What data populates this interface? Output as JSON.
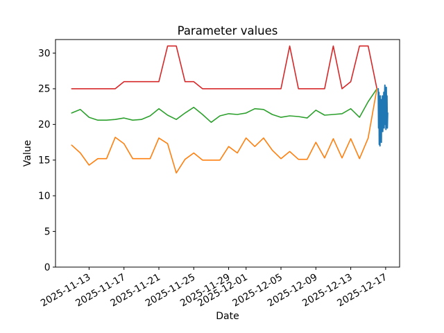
{
  "chart_data": {
    "type": "line",
    "title": "Parameter values",
    "xlabel": "Date",
    "ylabel": "Value",
    "grid": false,
    "legend": "none",
    "x_axis": {
      "epoch": "2025-11-11",
      "tick_labels": [
        "2025-11-13",
        "2025-11-17",
        "2025-11-21",
        "2025-11-25",
        "2025-11-29",
        "2025-12-01",
        "2025-12-05",
        "2025-12-09",
        "2025-12-13",
        "2025-12-17"
      ],
      "tick_day_offsets": [
        2,
        6,
        10,
        14,
        18,
        20,
        24,
        28,
        32,
        36
      ],
      "range_day_offsets": [
        -1.85,
        37.6
      ],
      "tick_label_rotation_deg": 30
    },
    "y_axis": {
      "tick_labels": [
        "0",
        "5",
        "10",
        "15",
        "20",
        "25",
        "30"
      ],
      "tick_values": [
        0,
        5,
        10,
        15,
        20,
        25,
        30
      ],
      "range": [
        0,
        31.9
      ]
    },
    "series": {
      "red": {
        "color": "#d62728",
        "start_date": "2025-11-11",
        "step_days": 1,
        "line_width": 1.6,
        "values": [
          25,
          25,
          25,
          25,
          25,
          25,
          26,
          26,
          26,
          26,
          26,
          31,
          31,
          26,
          26,
          25,
          25,
          25,
          25,
          25,
          25,
          25,
          25,
          25,
          25,
          31,
          25,
          25,
          25,
          25,
          31,
          25,
          26,
          31,
          31,
          25
        ]
      },
      "green": {
        "color": "#2ca02c",
        "start_date": "2025-11-11",
        "step_days": 1,
        "line_width": 1.6,
        "values": [
          21.6,
          22.1,
          21.0,
          20.6,
          20.6,
          20.7,
          20.9,
          20.6,
          20.7,
          21.2,
          22.2,
          21.3,
          20.7,
          21.6,
          22.4,
          21.4,
          20.3,
          21.2,
          21.5,
          21.4,
          21.6,
          22.2,
          22.1,
          21.4,
          21.0,
          21.2,
          21.1,
          20.9,
          22.0,
          21.3,
          21.4,
          21.5,
          22.2,
          21.0,
          23.2,
          25.0
        ]
      },
      "orange": {
        "color": "#ff7f0e",
        "start_date": "2025-11-11",
        "step_days": 1,
        "line_width": 1.6,
        "values": [
          17.1,
          16.0,
          14.3,
          15.2,
          15.2,
          18.2,
          17.3,
          15.2,
          15.2,
          15.2,
          18.1,
          17.3,
          13.2,
          15.1,
          16.0,
          15.0,
          15.0,
          15.0,
          16.9,
          16.0,
          18.1,
          16.9,
          18.1,
          16.4,
          15.2,
          16.2,
          15.1,
          15.1,
          17.5,
          15.3,
          18.0,
          15.3,
          18.0,
          15.2,
          18.1,
          25.0
        ]
      },
      "blue": {
        "color": "#1f77b4",
        "start_day_offset": 35.15,
        "step_days": 0.04,
        "line_width": 2,
        "values": [
          25.0,
          19.5,
          24.5,
          17.2,
          23.0,
          17.0,
          24.0,
          18.5,
          22.5,
          17.5,
          23.5,
          20.0,
          24.0,
          19.0,
          23.0,
          20.5,
          24.5,
          19.5,
          23.5,
          25.5,
          20.0,
          24.8,
          19.3,
          25.2,
          21.0,
          24.0,
          19.5,
          21.6
        ]
      }
    }
  }
}
